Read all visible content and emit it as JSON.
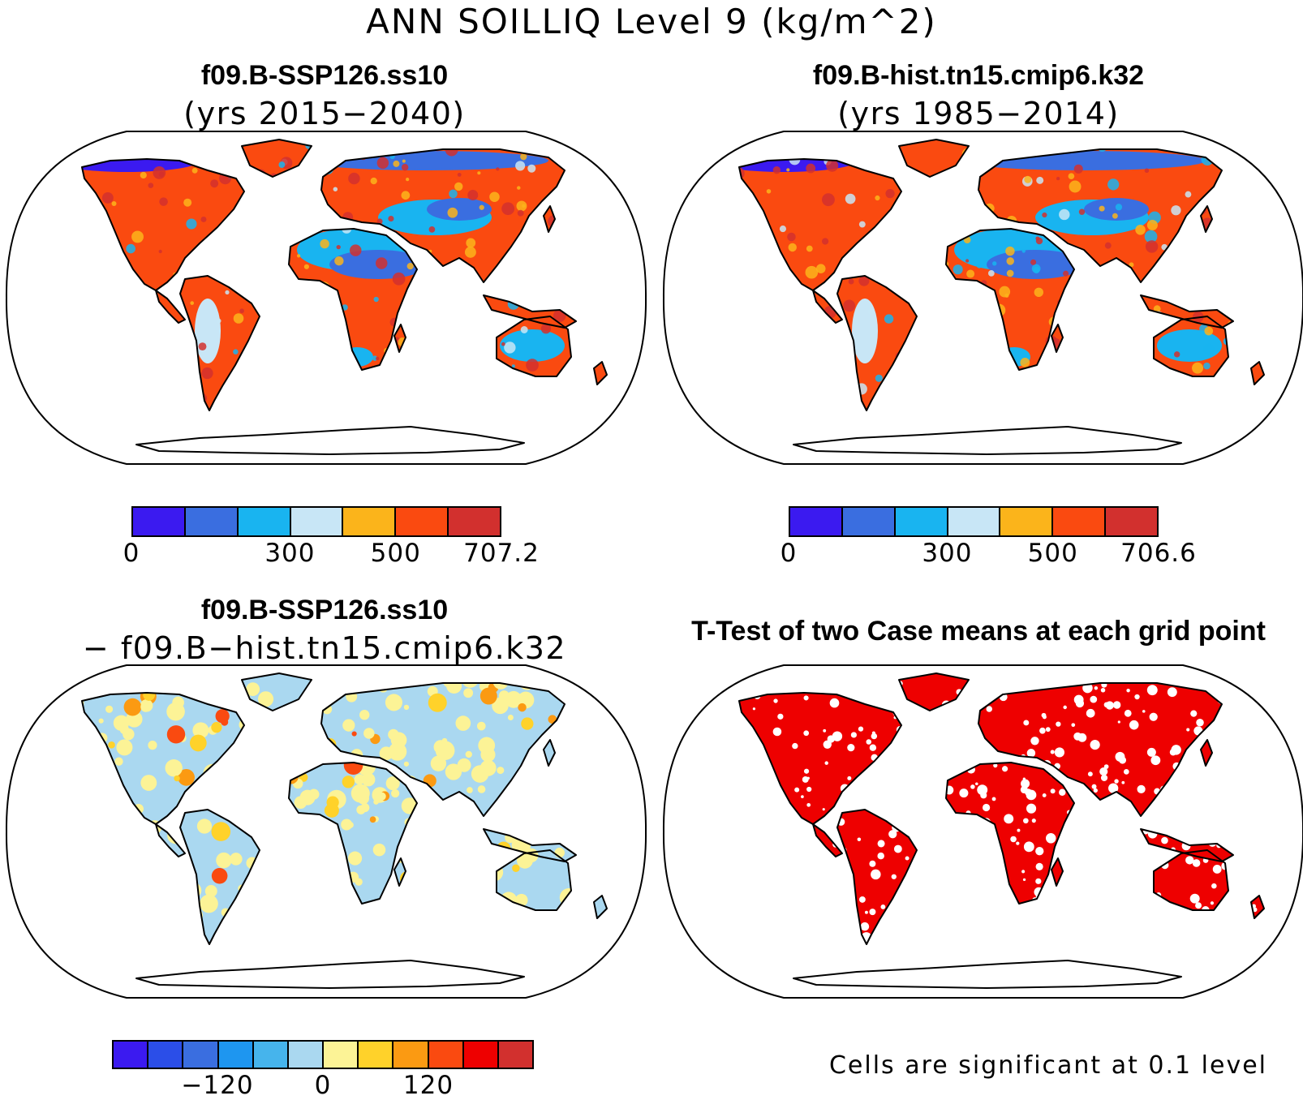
{
  "title": "ANN SOILLIQ Level 9 (kg/m^2)",
  "panels": [
    {
      "title": "f09.B-SSP126.ss10",
      "subtitle": "(yrs 2015−2040)",
      "kind": "absolute"
    },
    {
      "title": "f09.B-hist.tn15.cmip6.k32",
      "subtitle": "(yrs 1985−2014)",
      "kind": "absolute"
    },
    {
      "title": "f09.B-SSP126.ss10",
      "subtitle": "− f09.B−hist.tn15.cmip6.k32",
      "kind": "difference"
    },
    {
      "title": "T-Test of two Case means at each grid point",
      "subtitle": "",
      "kind": "significance"
    }
  ],
  "colorbars": [
    {
      "colors": [
        "#3b1af0",
        "#3a6ee0",
        "#19b4f0",
        "#c8e6f6",
        "#fbb41b",
        "#fa4a10",
        "#d2302e"
      ],
      "labels": [
        {
          "text": "0",
          "at": 0
        },
        {
          "text": "300",
          "at": 3
        },
        {
          "text": "500",
          "at": 5
        },
        {
          "text": "707.2",
          "at": 7
        }
      ]
    },
    {
      "colors": [
        "#3b1af0",
        "#3a6ee0",
        "#19b4f0",
        "#c8e6f6",
        "#fbb41b",
        "#fa4a10",
        "#d2302e"
      ],
      "labels": [
        {
          "text": "0",
          "at": 0
        },
        {
          "text": "300",
          "at": 3
        },
        {
          "text": "500",
          "at": 5
        },
        {
          "text": "706.6",
          "at": 7
        }
      ]
    },
    {
      "colors": [
        "#3b1af0",
        "#2b4ee8",
        "#3a6ee0",
        "#1e96f0",
        "#46b4ec",
        "#aad8f0",
        "#fcf396",
        "#ffd22a",
        "#fb9a12",
        "#fa4a10",
        "#ee0000",
        "#d2302e"
      ],
      "labels": [
        {
          "text": "−120",
          "at": 3
        },
        {
          "text": "0",
          "at": 6
        },
        {
          "text": "120",
          "at": 9
        }
      ]
    }
  ],
  "footnote": "Cells are significant at 0.1 level",
  "colors": {
    "ocean": "#ffffff",
    "coast": "#000000",
    "absolute_land": [
      "#fa4a10",
      "#d2302e",
      "#fbb41b",
      "#19b4f0",
      "#c8e6f6",
      "#3a6ee0",
      "#3b1af0"
    ],
    "difference_land": [
      "#aad8f0",
      "#fcf396",
      "#ffd22a",
      "#fb9a12",
      "#fa4a10"
    ],
    "significance": "#ee0000"
  }
}
